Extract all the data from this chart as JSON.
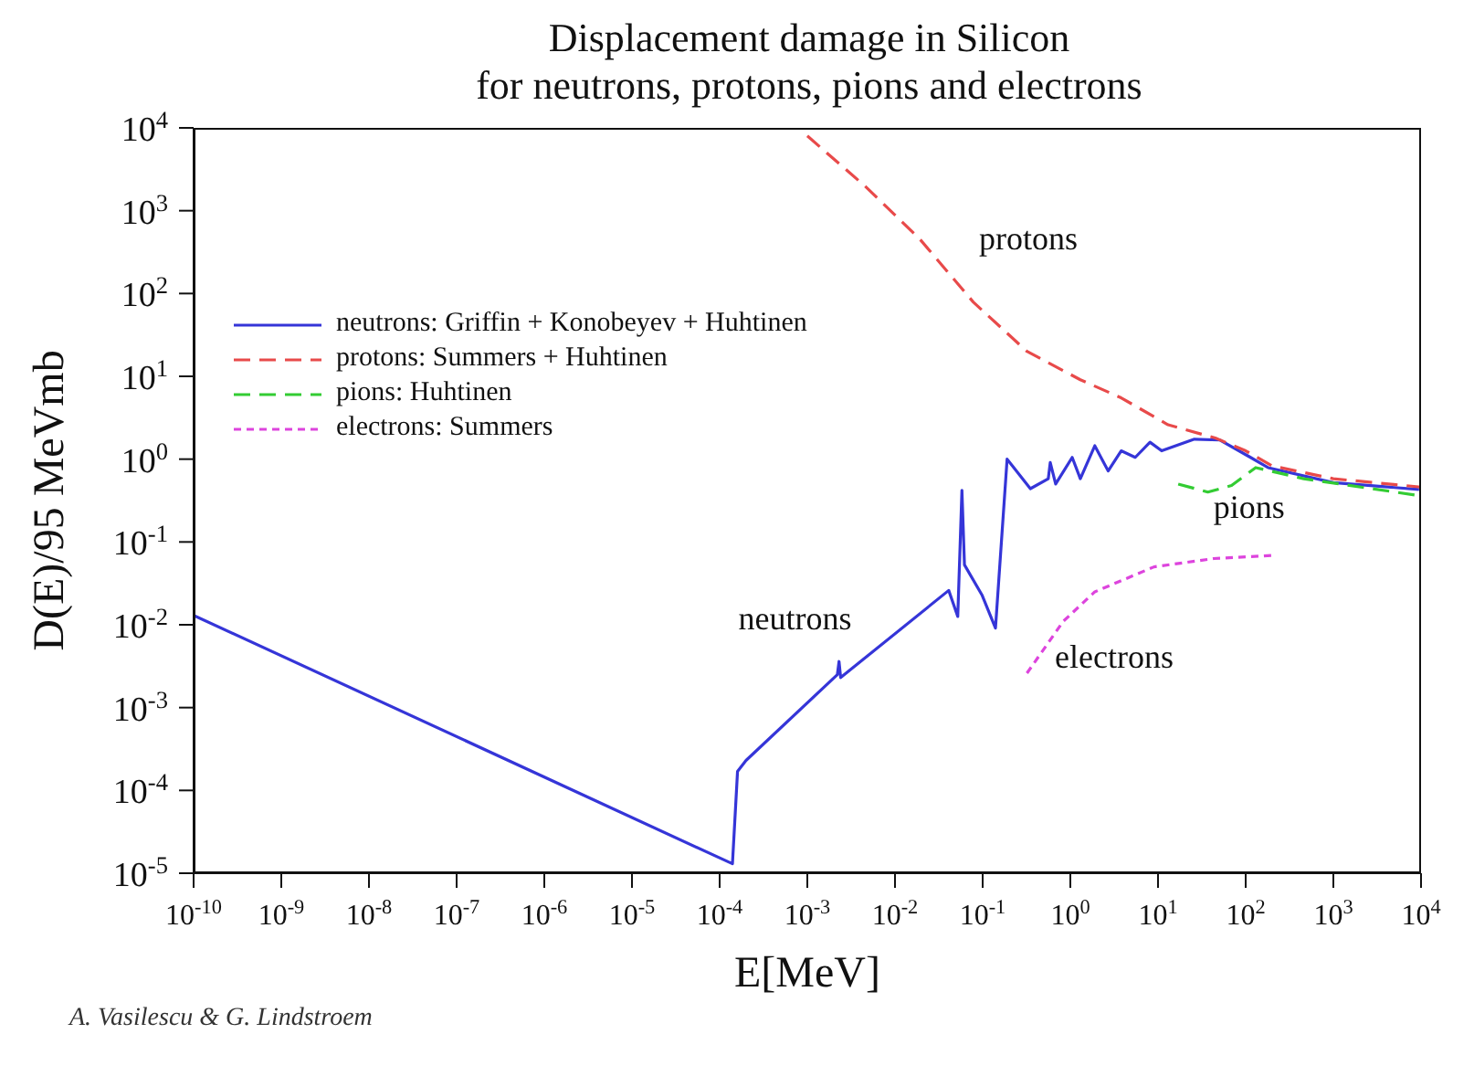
{
  "chart_data": {
    "type": "line",
    "title": "Displacement damage in Silicon",
    "subtitle": "for neutrons, protons, pions and electrons",
    "xlabel": "E[MeV]",
    "ylabel": "D(E)/95 MeVmb",
    "log": "xy",
    "legend": "top left",
    "marker": "none",
    "xlim": [
      1e-10,
      10000
    ],
    "ylim": [
      1e-05,
      10000
    ],
    "xticks": [
      {
        "value": 1e-10,
        "label": "10$^{-10}$"
      },
      {
        "value": 1e-09,
        "label": "10$^{-9}$"
      },
      {
        "value": 1e-08,
        "label": "10$^{-8}$"
      },
      {
        "value": 1e-07,
        "label": "10$^{-7}$"
      },
      {
        "value": 1e-06,
        "label": "10$^{-6}$"
      },
      {
        "value": 1e-05,
        "label": "10$^{-5}$"
      },
      {
        "value": 0.0001,
        "label": "10$^{-4}$"
      },
      {
        "value": 0.001,
        "label": "10$^{-3}$"
      },
      {
        "value": 0.01,
        "label": "10$^{-2}$"
      },
      {
        "value": 0.1,
        "label": "10$^{-1}$"
      },
      {
        "value": 1,
        "label": "10$^{0}$"
      },
      {
        "value": 10,
        "label": "10$^{1}$"
      },
      {
        "value": 100,
        "label": "10$^{2}$"
      },
      {
        "value": 1000,
        "label": "10$^{3}$"
      },
      {
        "value": 10000,
        "label": "10$^{4}$"
      }
    ],
    "yticks": [
      {
        "value": 1e-05,
        "label": "10$^{-5}$"
      },
      {
        "value": 0.0001,
        "label": "10$^{-4}$"
      },
      {
        "value": 0.001,
        "label": "10$^{-3}$"
      },
      {
        "value": 0.01,
        "label": "10$^{-2}$"
      },
      {
        "value": 0.1,
        "label": "10$^{-1}$"
      },
      {
        "value": 1,
        "label": "10$^{0}$"
      },
      {
        "value": 10,
        "label": "10$^{1}$"
      },
      {
        "value": 100,
        "label": "10$^{2}$"
      },
      {
        "value": 1000,
        "label": "10$^{3}$"
      },
      {
        "value": 10000,
        "label": "10$^{4}$"
      }
    ],
    "series": [
      {
        "name": "neutrons: Griffin + Konobeyev + Huhtinen",
        "color": "#3535d8",
        "line_style": "solid",
        "x": [
          1e-10,
          0.00014,
          0.00016,
          0.0002,
          0.0022,
          0.0023,
          0.0024,
          0.041,
          0.052,
          0.058,
          0.062,
          0.098,
          0.14,
          0.19,
          0.35,
          0.56,
          0.59,
          0.68,
          1.05,
          1.3,
          1.9,
          2.7,
          3.8,
          5.5,
          8.1,
          11,
          26,
          51,
          110,
          180,
          1000,
          9500
        ],
        "values": [
          0.013,
          1.3e-05,
          0.00017,
          0.00023,
          0.0025,
          0.0036,
          0.0023,
          0.026,
          0.0126,
          0.42,
          0.053,
          0.023,
          0.0091,
          1.0,
          0.44,
          0.58,
          0.91,
          0.5,
          1.05,
          0.58,
          1.45,
          0.72,
          1.26,
          1.05,
          1.6,
          1.26,
          1.74,
          1.7,
          1.07,
          0.79,
          0.52,
          0.43
        ]
      },
      {
        "name": "protons: Summers + Huhtinen",
        "color": "#e84a4a",
        "line_style": "dashed",
        "x": [
          0.001,
          0.0045,
          0.019,
          0.078,
          0.32,
          1.3,
          3.8,
          13,
          45,
          100,
          200,
          1000,
          10000
        ],
        "values": [
          8000,
          2000,
          460,
          79,
          20,
          9.1,
          5.5,
          2.6,
          1.8,
          1.26,
          0.83,
          0.58,
          0.46
        ]
      },
      {
        "name": "pions: Huhtinen",
        "color": "#33cc33",
        "line_style": "dashed",
        "x": [
          17,
          37,
          69,
          130,
          460,
          10000
        ],
        "values": [
          0.5,
          0.4,
          0.48,
          0.79,
          0.58,
          0.36
        ]
      },
      {
        "name": "electrons: Summers",
        "color": "#dd44dd",
        "line_style": "dotted",
        "x": [
          0.32,
          0.83,
          1.9,
          9,
          43,
          210
        ],
        "values": [
          0.0026,
          0.011,
          0.025,
          0.05,
          0.063,
          0.069
        ]
      }
    ],
    "annotations": [
      "protons",
      "neutrons",
      "pions",
      "electrons",
      "A. Vasilescu & G. Lindstroem"
    ]
  }
}
